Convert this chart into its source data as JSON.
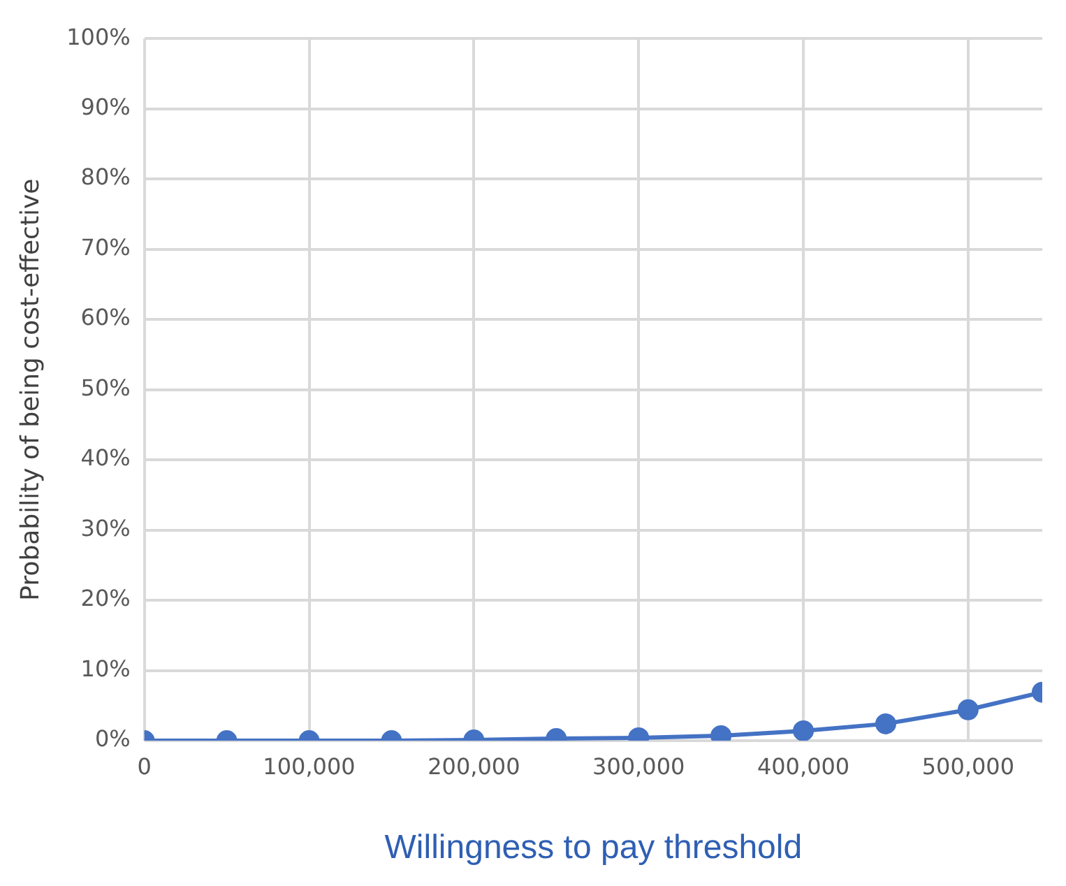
{
  "chart_data": {
    "type": "line",
    "xlabel": "Willingness to pay threshold",
    "ylabel": "Probability of being cost-effective",
    "x": [
      0,
      50000,
      100000,
      150000,
      200000,
      250000,
      300000,
      350000,
      400000,
      450000,
      500000,
      545000
    ],
    "series": [
      {
        "color": "#4472c4",
        "values": [
          0,
          0,
          0,
          0,
          0.1,
          0.3,
          0.4,
          0.7,
          1.4,
          2.4,
          4.4,
          6.9
        ]
      }
    ],
    "xlim": [
      0,
      545000
    ],
    "xticks": [
      {
        "value": 0,
        "label": "0"
      },
      {
        "value": 100000,
        "label": "100,000"
      },
      {
        "value": 200000,
        "label": "200,000"
      },
      {
        "value": 300000,
        "label": "300,000"
      },
      {
        "value": 400000,
        "label": "400,000"
      },
      {
        "value": 500000,
        "label": "500,000"
      }
    ],
    "ylim": [
      0,
      100
    ],
    "yticks": [
      {
        "value": 0,
        "label": "0%"
      },
      {
        "value": 10,
        "label": "10%"
      },
      {
        "value": 20,
        "label": "20%"
      },
      {
        "value": 30,
        "label": "30%"
      },
      {
        "value": 40,
        "label": "40%"
      },
      {
        "value": 50,
        "label": "50%"
      },
      {
        "value": 60,
        "label": "60%"
      },
      {
        "value": 70,
        "label": "70%"
      },
      {
        "value": 80,
        "label": "80%"
      },
      {
        "value": 90,
        "label": "90%"
      },
      {
        "value": 100,
        "label": "100%"
      }
    ],
    "grid": true,
    "marker": "circle",
    "line_style": "solid",
    "legend": false
  }
}
